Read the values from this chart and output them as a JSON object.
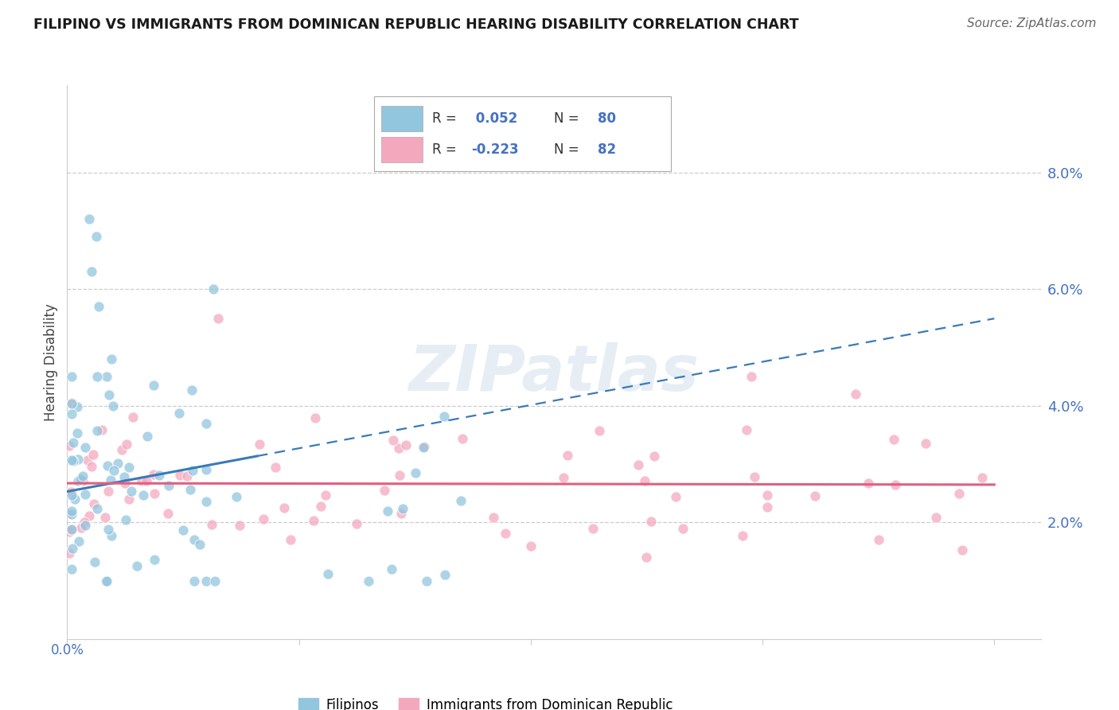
{
  "title": "FILIPINO VS IMMIGRANTS FROM DOMINICAN REPUBLIC HEARING DISABILITY CORRELATION CHART",
  "source": "Source: ZipAtlas.com",
  "ylabel": "Hearing Disability",
  "watermark": "ZIPatlas",
  "r_filipino": 0.052,
  "n_filipino": 80,
  "r_dominican": -0.223,
  "n_dominican": 82,
  "filipino_color": "#92c5de",
  "dominican_color": "#f4a8be",
  "filipino_line_color": "#3a7ab8",
  "dominican_line_color": "#e06080",
  "xlim": [
    0.0,
    0.42
  ],
  "ylim": [
    0.0,
    0.095
  ],
  "ytick_vals": [
    0.02,
    0.04,
    0.06,
    0.08
  ],
  "ytick_labels": [
    "2.0%",
    "4.0%",
    "6.0%",
    "8.0%"
  ],
  "xtick_vals": [
    0.0,
    0.1,
    0.2,
    0.3,
    0.4
  ],
  "grid_color": "#cccccc",
  "title_color": "#1a1a1a",
  "source_color": "#666666",
  "axis_label_color": "#444444",
  "right_tick_color": "#4472c4",
  "bottom_tick_color": "#4472c4"
}
